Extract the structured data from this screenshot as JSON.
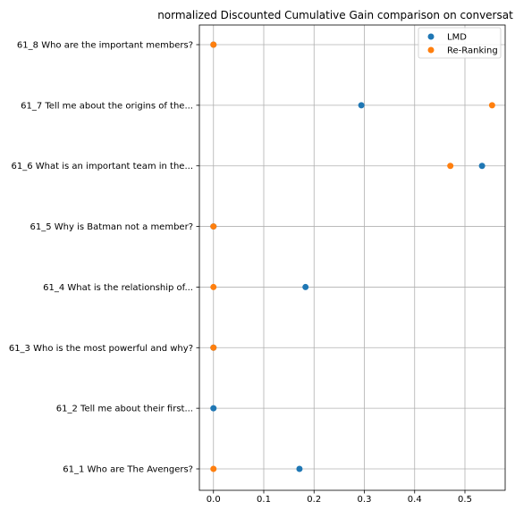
{
  "chart_data": {
    "type": "scatter",
    "title": "normalized Discounted Cumulative Gain comparison on conversat",
    "xlabel": "",
    "ylabel": "",
    "categories": [
      "61_1 Who are The Avengers?",
      "61_2 Tell me about their first...",
      "61_3 Who is the most powerful and why?",
      "61_4 What is the relationship of...",
      "61_5 Why is Batman not a member?",
      "61_6 What is an important team in the...",
      "61_7 Tell me about the origins of the...",
      "61_8 Who are the important members?"
    ],
    "xlim": [
      -0.028,
      0.58
    ],
    "xticks": [
      0.0,
      0.1,
      0.2,
      0.3,
      0.4,
      0.5
    ],
    "xtick_labels": [
      "0.0",
      "0.1",
      "0.2",
      "0.3",
      "0.4",
      "0.5"
    ],
    "grid": true,
    "legend_position": "top-right",
    "series": [
      {
        "name": "LMD",
        "color": "#1f77b4",
        "values": [
          0.171,
          0.0,
          0.0,
          0.183,
          0.0,
          0.534,
          0.294,
          0.0
        ]
      },
      {
        "name": "Re-Ranking",
        "color": "#ff7f0e",
        "values": [
          0.0,
          null,
          0.0,
          0.0,
          0.0,
          0.471,
          0.554,
          0.0
        ]
      }
    ]
  }
}
